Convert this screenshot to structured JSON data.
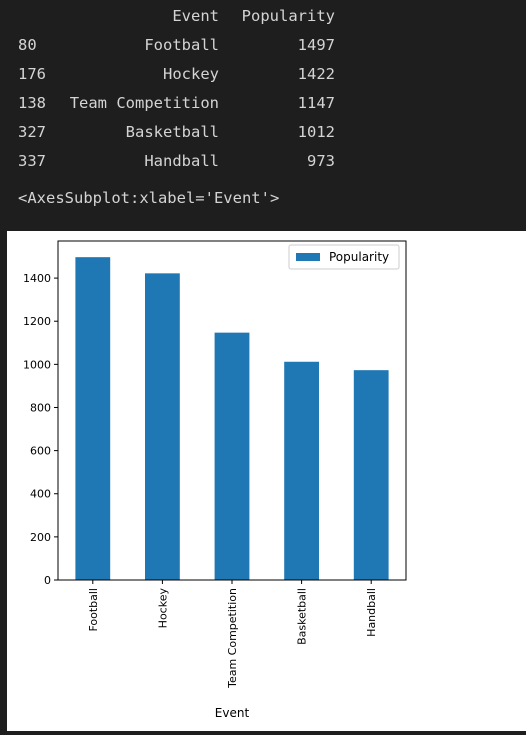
{
  "dataframe": {
    "index_header": "",
    "columns": [
      "Event",
      "Popularity"
    ],
    "rows": [
      {
        "index": "80",
        "event": "Football",
        "popularity": "1497"
      },
      {
        "index": "176",
        "event": "Hockey",
        "popularity": "1422"
      },
      {
        "index": "138",
        "event": "Team Competition",
        "popularity": "1147"
      },
      {
        "index": "327",
        "event": "Basketball",
        "popularity": "1012"
      },
      {
        "index": "337",
        "event": "Handball",
        "popularity": "973"
      }
    ]
  },
  "repr_output": "<AxesSubplot:xlabel='Event'>",
  "colors": {
    "background": "#1e1e1e",
    "text": "#d4d4d4",
    "bar": "#1f77b4"
  },
  "chart_data": {
    "type": "bar",
    "categories": [
      "Football",
      "Hockey",
      "Team Competition",
      "Basketball",
      "Handball"
    ],
    "series": [
      {
        "name": "Popularity",
        "values": [
          1497,
          1422,
          1147,
          1012,
          973
        ]
      }
    ],
    "xlabel": "Event",
    "ylabel": "",
    "ylim": [
      0,
      1572
    ],
    "yticks": [
      0,
      200,
      400,
      600,
      800,
      1000,
      1200,
      1400
    ],
    "legend": "top-right",
    "grid": false
  }
}
